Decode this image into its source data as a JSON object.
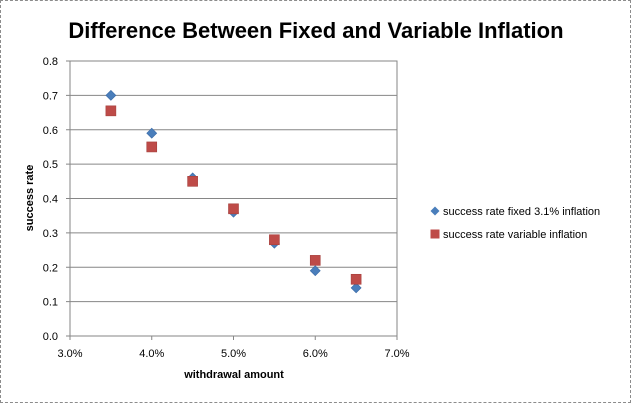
{
  "chart_data": {
    "type": "scatter",
    "title": "Difference Between Fixed and Variable Inflation",
    "xlabel": "withdrawal amount",
    "ylabel": "success rate",
    "xlim": [
      0.03,
      0.07
    ],
    "ylim": [
      0,
      0.8
    ],
    "x_ticks": [
      "3.0%",
      "4.0%",
      "5.0%",
      "6.0%",
      "7.0%"
    ],
    "x_tick_values": [
      0.03,
      0.04,
      0.05,
      0.06,
      0.07
    ],
    "y_ticks": [
      "0.0",
      "0.1",
      "0.2",
      "0.3",
      "0.4",
      "0.5",
      "0.6",
      "0.7",
      "0.8"
    ],
    "y_tick_values": [
      0,
      0.1,
      0.2,
      0.3,
      0.4,
      0.5,
      0.6,
      0.7,
      0.8
    ],
    "grid": "horizontal",
    "legend_position": "right",
    "series": [
      {
        "name": "success rate fixed 3.1% inflation",
        "marker": "diamond",
        "color": "#4a7ebb",
        "x": [
          0.035,
          0.04,
          0.045,
          0.05,
          0.055,
          0.06,
          0.065
        ],
        "y": [
          0.7,
          0.59,
          0.46,
          0.36,
          0.27,
          0.19,
          0.14
        ]
      },
      {
        "name": "success rate variable inflation",
        "marker": "square",
        "color": "#be4b48",
        "x": [
          0.035,
          0.04,
          0.045,
          0.05,
          0.055,
          0.06,
          0.065
        ],
        "y": [
          0.655,
          0.55,
          0.45,
          0.37,
          0.28,
          0.22,
          0.165
        ]
      }
    ]
  }
}
